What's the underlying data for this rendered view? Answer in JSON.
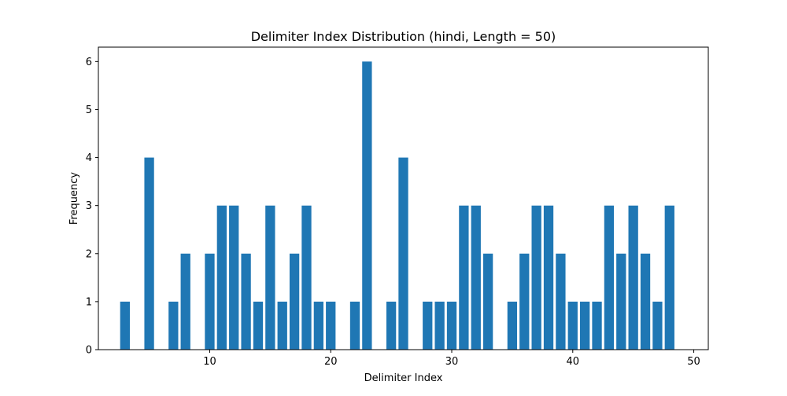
{
  "chart_data": {
    "type": "bar",
    "title": "Delimiter Index Distribution (hindi, Length = 50)",
    "xlabel": "Delimiter Index",
    "ylabel": "Frequency",
    "x": [
      3,
      5,
      7,
      8,
      10,
      11,
      12,
      13,
      14,
      15,
      16,
      17,
      18,
      19,
      20,
      22,
      23,
      25,
      26,
      28,
      29,
      30,
      31,
      32,
      33,
      35,
      36,
      37,
      38,
      39,
      40,
      41,
      42,
      43,
      44,
      45,
      46,
      47,
      48
    ],
    "values": [
      1,
      4,
      1,
      2,
      2,
      3,
      3,
      2,
      1,
      3,
      1,
      2,
      3,
      1,
      1,
      1,
      6,
      1,
      4,
      1,
      1,
      1,
      3,
      3,
      2,
      1,
      2,
      3,
      3,
      2,
      1,
      1,
      1,
      3,
      2,
      3,
      2,
      1,
      3
    ],
    "xlim": [
      0.8,
      51.2
    ],
    "ylim": [
      0,
      6.3
    ],
    "xticks": [
      10,
      20,
      30,
      40,
      50
    ],
    "yticks": [
      0,
      1,
      2,
      3,
      4,
      5,
      6
    ],
    "bar_color": "#1f77b4",
    "grid": false,
    "legend": "none"
  }
}
